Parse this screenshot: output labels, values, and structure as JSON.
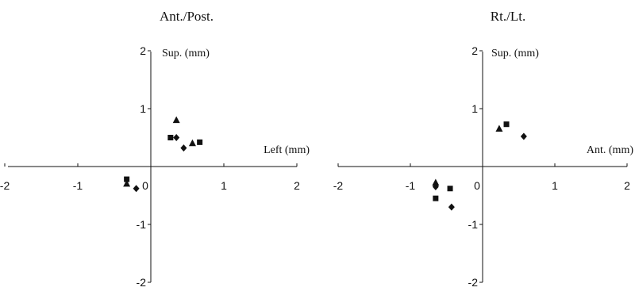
{
  "chart_data": [
    {
      "type": "scatter",
      "title": "Ant./Post.",
      "xlabel": "Left (mm)",
      "ylabel": "Sup. (mm)",
      "xlim": [
        -2,
        2
      ],
      "ylim": [
        -2,
        2
      ],
      "x_ticks": [
        "-2",
        "-1",
        "0",
        "1",
        "2"
      ],
      "y_ticks": [
        "2",
        "1",
        "-1",
        "-2"
      ],
      "grid": false,
      "series": [
        {
          "marker": "square",
          "points": [
            [
              0.27,
              0.5
            ],
            [
              0.67,
              0.42
            ],
            [
              -0.33,
              -0.22
            ]
          ]
        },
        {
          "marker": "triangle",
          "points": [
            [
              0.35,
              0.8
            ],
            [
              0.57,
              0.4
            ],
            [
              -0.33,
              -0.3
            ]
          ]
        },
        {
          "marker": "diamond",
          "points": [
            [
              0.35,
              0.5
            ],
            [
              0.45,
              0.32
            ],
            [
              -0.2,
              -0.38
            ]
          ]
        }
      ]
    },
    {
      "type": "scatter",
      "title": "Rt./Lt.",
      "xlabel": "Ant. (mm)",
      "ylabel": "Sup. (mm)",
      "xlim": [
        -2,
        2
      ],
      "ylim": [
        -2,
        2
      ],
      "x_ticks": [
        "-2",
        "-1",
        "0",
        "1",
        "2"
      ],
      "y_ticks": [
        "2",
        "1",
        "-1",
        "-2"
      ],
      "grid": false,
      "series": [
        {
          "marker": "square",
          "points": [
            [
              0.33,
              0.73
            ],
            [
              -0.45,
              -0.38
            ],
            [
              -0.65,
              -0.55
            ]
          ]
        },
        {
          "marker": "triangle",
          "points": [
            [
              0.23,
              0.65
            ],
            [
              -0.65,
              -0.28
            ]
          ]
        },
        {
          "marker": "diamond",
          "points": [
            [
              0.57,
              0.52
            ],
            [
              -0.43,
              -0.7
            ],
            [
              -0.65,
              -0.35
            ]
          ]
        }
      ]
    }
  ]
}
